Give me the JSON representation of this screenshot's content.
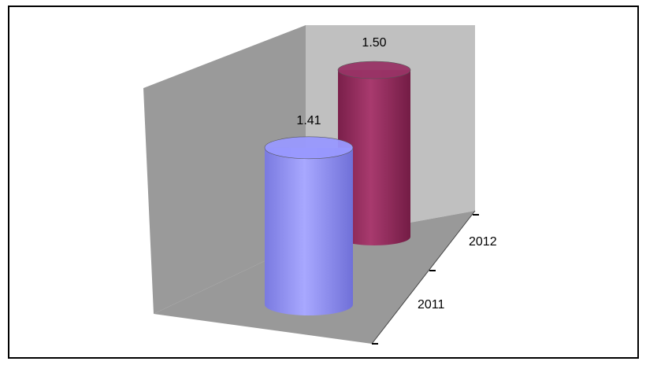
{
  "chart_data": {
    "type": "bar",
    "style": "3d-cylinder",
    "categories": [
      "2011",
      "2012"
    ],
    "values": [
      1.41,
      1.5
    ],
    "value_labels": [
      "1.41",
      "1.50"
    ],
    "series_colors": [
      "#9999ff",
      "#993366"
    ],
    "title": "",
    "xlabel": "",
    "ylabel": "",
    "legend": "none",
    "grid": false
  },
  "colors": {
    "back_wall": "#c0c0c0",
    "side_wall": "#9a9a9a",
    "floor": "#999999",
    "frame": "#000000"
  }
}
